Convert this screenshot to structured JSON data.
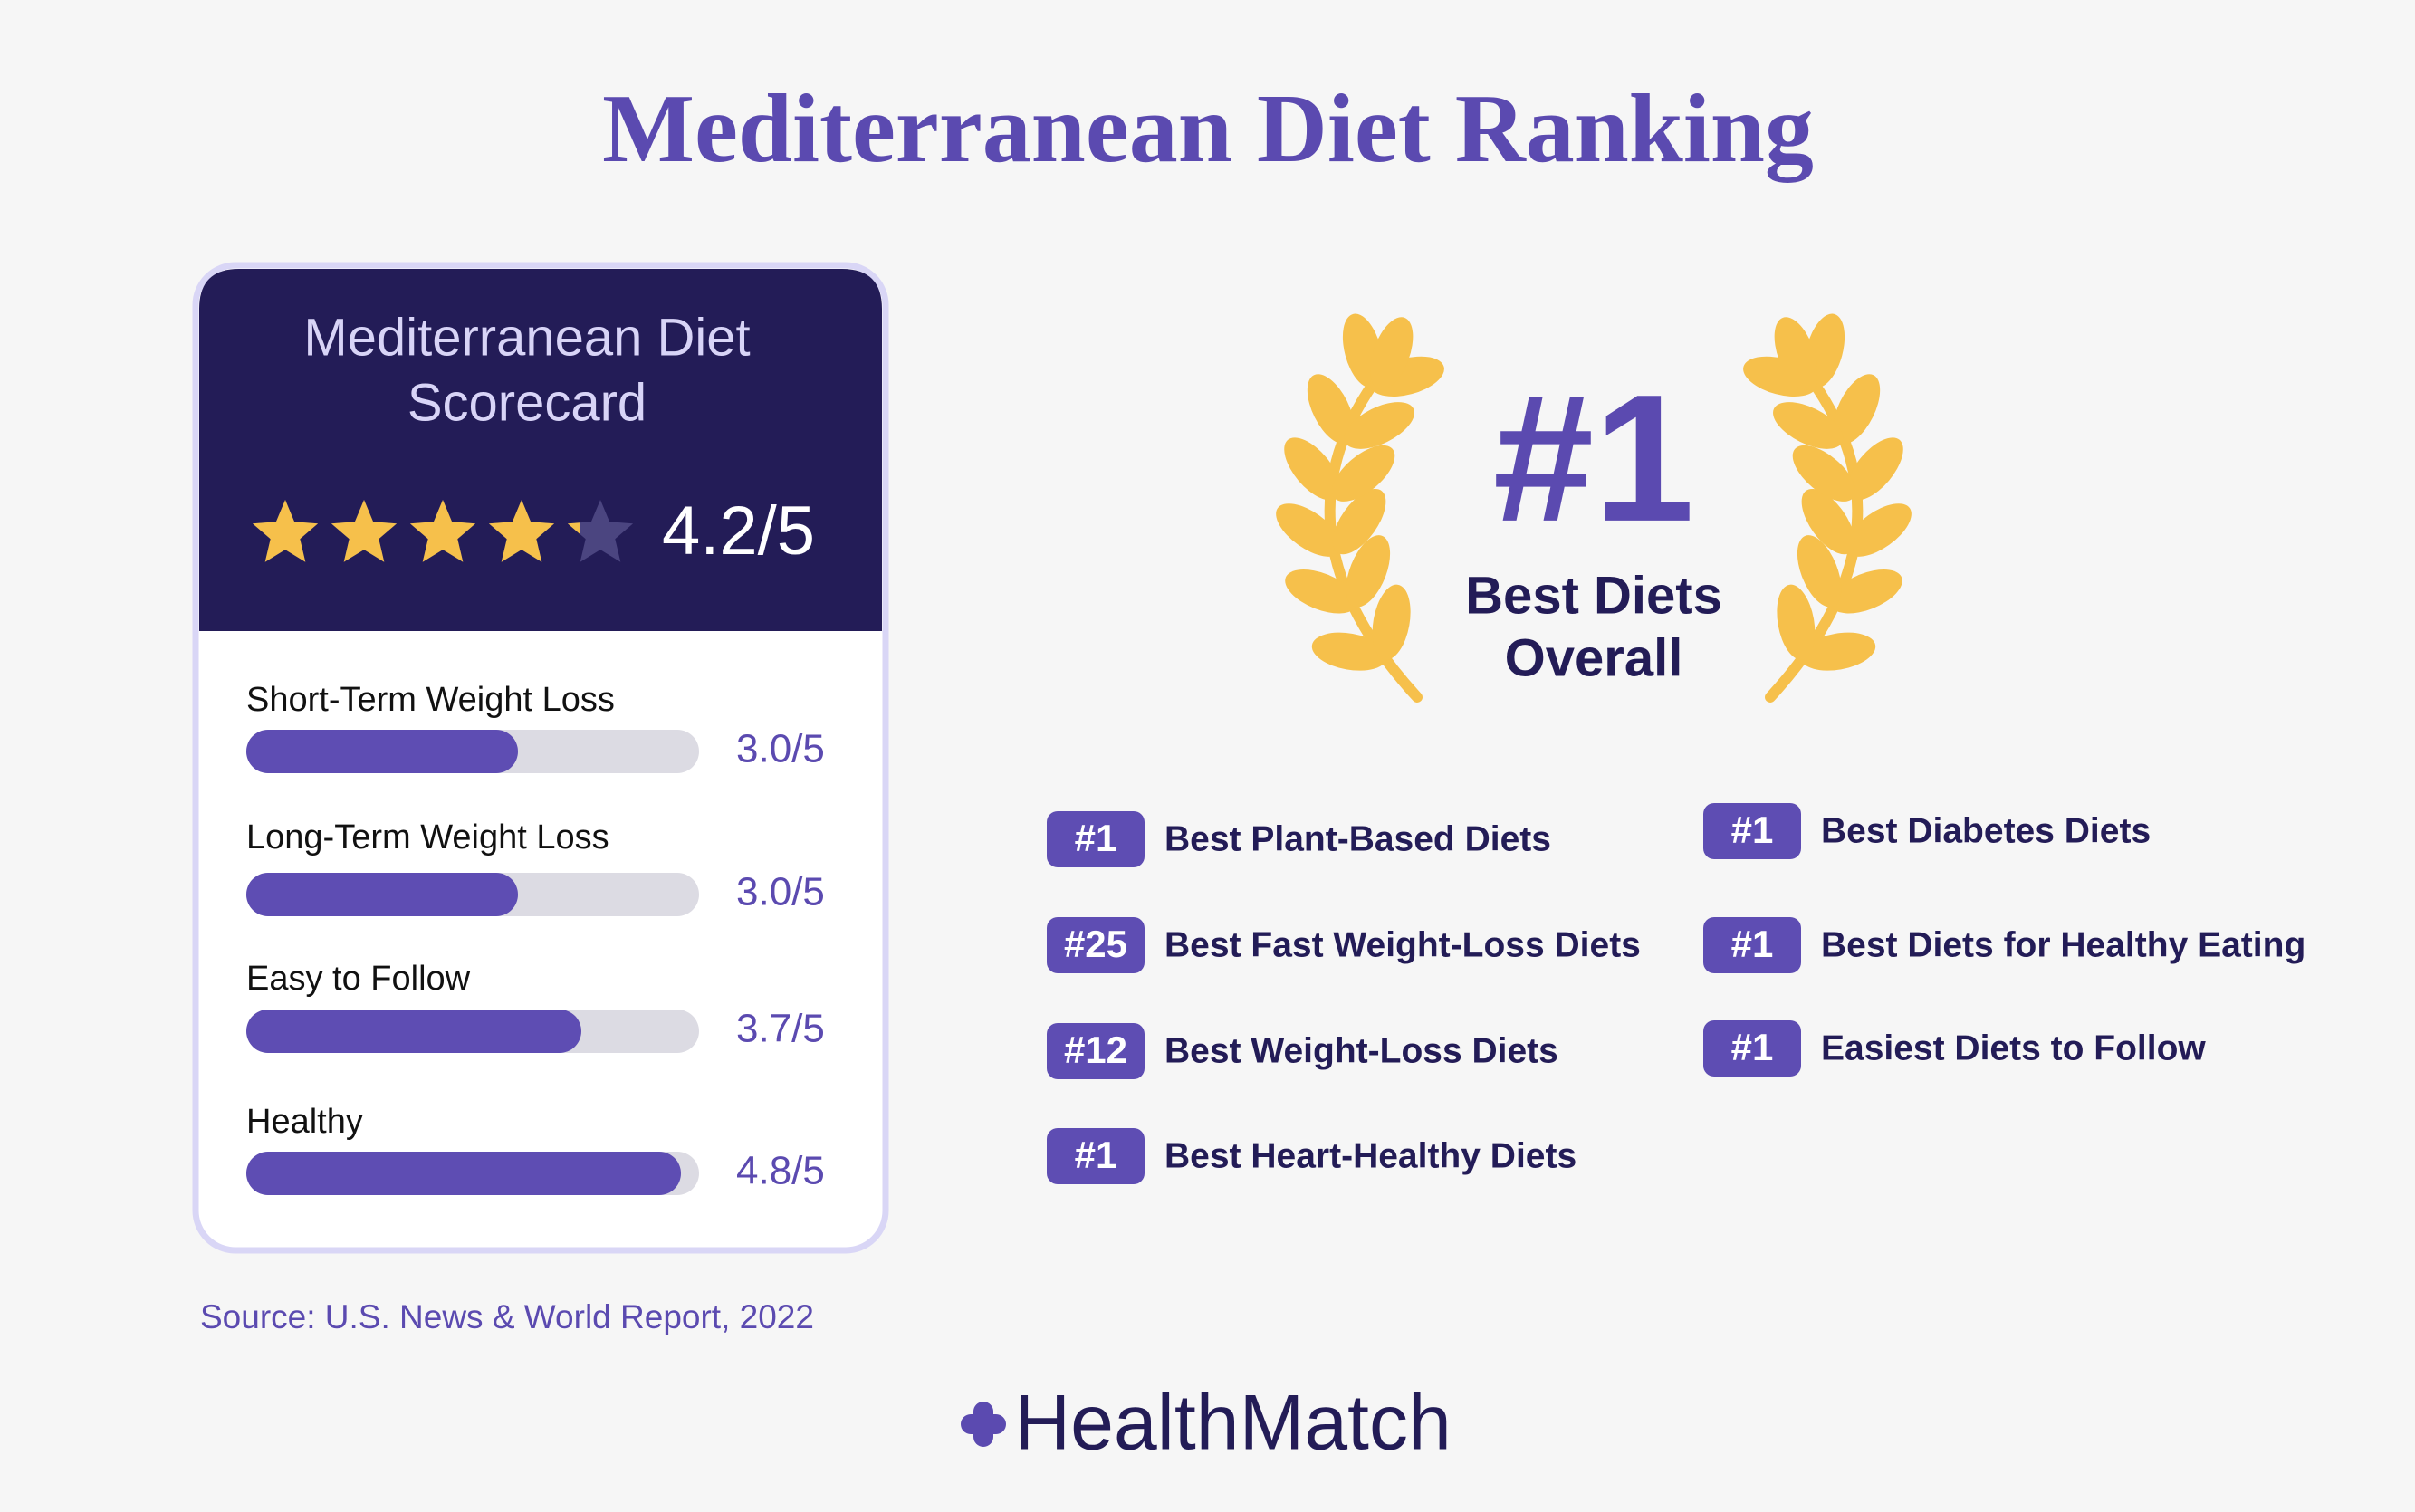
{
  "title": "Mediterranean Diet Ranking",
  "scorecard": {
    "title_lines": [
      "Mediterranean Diet",
      "Scorecard"
    ],
    "rating": 4.2,
    "rating_label": "4.2/5",
    "xlim": [
      0,
      5
    ],
    "rows": [
      {
        "label": "Short-Term Weight Loss",
        "score": 3.0,
        "score_label": "3.0/5"
      },
      {
        "label": "Long-Term Weight Loss",
        "score": 3.0,
        "score_label": "3.0/5"
      },
      {
        "label": "Easy to Follow",
        "score": 3.7,
        "score_label": "3.7/5"
      },
      {
        "label": "Healthy",
        "score": 4.8,
        "score_label": "4.8/5"
      }
    ]
  },
  "source": "Source: U.S. News & World Report, 2022",
  "award": {
    "rank": "#1",
    "lines": [
      "Best Diets",
      "Overall"
    ]
  },
  "rankings": {
    "left": [
      {
        "rank": "#1",
        "label": "Best Plant-Based Diets"
      },
      {
        "rank": "#25",
        "label": "Best Fast Weight-Loss Diets"
      },
      {
        "rank": "#12",
        "label": "Best Weight-Loss Diets"
      },
      {
        "rank": "#1",
        "label": "Best Heart-Healthy Diets"
      }
    ],
    "right": [
      {
        "rank": "#1",
        "label": "Best Diabetes Diets"
      },
      {
        "rank": "#1",
        "label": "Best Diets for Healthy Eating"
      },
      {
        "rank": "#1",
        "label": "Easiest Diets to Follow"
      }
    ]
  },
  "logo": "HealthMatch"
}
